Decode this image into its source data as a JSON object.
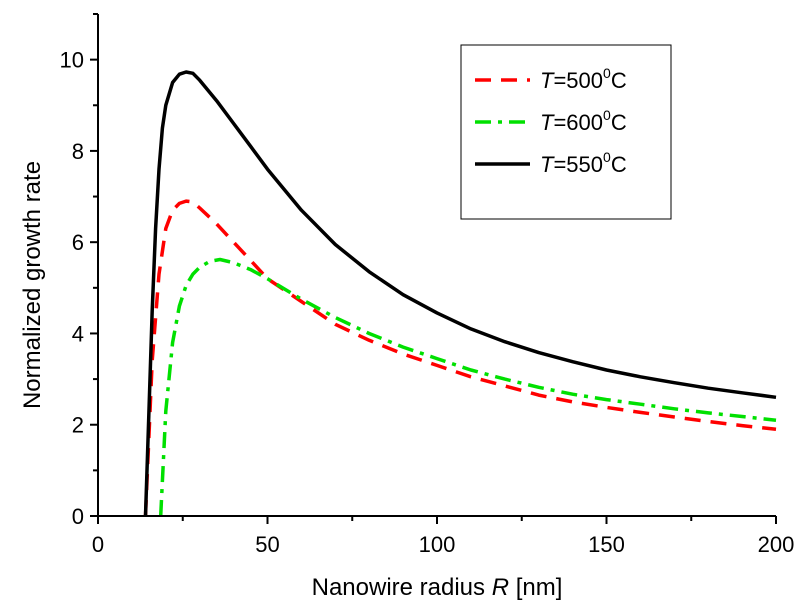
{
  "chart_data": {
    "type": "line",
    "title": "",
    "xlabel": "Nanowire radius R [nm]",
    "xlabel_plain": "Nanowire radius ",
    "xlabel_var": "R",
    "xlabel_unit": " [nm]",
    "ylabel": "Normalized growth rate",
    "xlim": [
      0,
      200
    ],
    "ylim": [
      0,
      11
    ],
    "xticks": [
      "0",
      "50",
      "100",
      "150",
      "200"
    ],
    "yticks": [
      "0",
      "2",
      "4",
      "6",
      "8",
      "10"
    ],
    "grid": false,
    "legend_position": "top-right",
    "series": [
      {
        "name": "T=500°C",
        "legend_var": "T",
        "legend_eq": "=500",
        "legend_sup": "0",
        "legend_unit": "C",
        "color": "#ff0000",
        "style": "dashed",
        "x": [
          14,
          16,
          18,
          20,
          22,
          24,
          26,
          28,
          30,
          35,
          40,
          45,
          50,
          60,
          70,
          80,
          90,
          100,
          110,
          120,
          130,
          140,
          150,
          160,
          170,
          180,
          190,
          200
        ],
        "y": [
          0,
          3.4,
          5.3,
          6.3,
          6.7,
          6.85,
          6.9,
          6.88,
          6.75,
          6.4,
          6.0,
          5.6,
          5.2,
          4.7,
          4.2,
          3.85,
          3.55,
          3.3,
          3.05,
          2.85,
          2.65,
          2.5,
          2.38,
          2.27,
          2.17,
          2.07,
          1.98,
          1.9
        ]
      },
      {
        "name": "T=600°C",
        "legend_var": "T",
        "legend_eq": "=600",
        "legend_sup": "0",
        "legend_unit": "C",
        "color": "#00e000",
        "style": "dashdot",
        "x": [
          18.5,
          20,
          22,
          24,
          26,
          28,
          30,
          33,
          36,
          40,
          45,
          50,
          60,
          70,
          80,
          90,
          100,
          110,
          120,
          130,
          140,
          150,
          160,
          170,
          180,
          190,
          200
        ],
        "y": [
          0,
          2.3,
          3.8,
          4.6,
          5.05,
          5.3,
          5.45,
          5.58,
          5.62,
          5.55,
          5.4,
          5.2,
          4.75,
          4.35,
          4.0,
          3.7,
          3.45,
          3.2,
          3.0,
          2.82,
          2.67,
          2.55,
          2.45,
          2.35,
          2.26,
          2.18,
          2.1
        ]
      },
      {
        "name": "T=550°C",
        "legend_var": "T",
        "legend_eq": "=550",
        "legend_sup": "0",
        "legend_unit": "C",
        "color": "#000000",
        "style": "solid",
        "x": [
          14,
          15,
          16,
          17,
          18,
          19,
          20,
          22,
          24,
          26,
          28,
          30,
          35,
          40,
          45,
          50,
          60,
          70,
          80,
          90,
          100,
          110,
          120,
          130,
          140,
          150,
          160,
          170,
          180,
          190,
          200
        ],
        "y": [
          0,
          2.2,
          4.5,
          6.3,
          7.6,
          8.5,
          9.0,
          9.5,
          9.68,
          9.73,
          9.7,
          9.55,
          9.1,
          8.6,
          8.1,
          7.6,
          6.7,
          5.95,
          5.35,
          4.85,
          4.45,
          4.1,
          3.82,
          3.58,
          3.38,
          3.2,
          3.05,
          2.92,
          2.8,
          2.7,
          2.6
        ]
      }
    ]
  }
}
